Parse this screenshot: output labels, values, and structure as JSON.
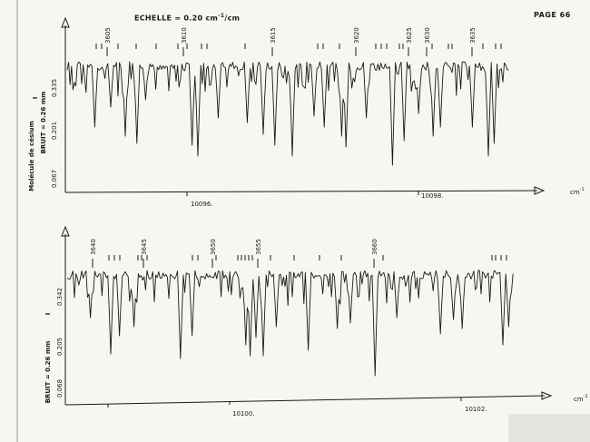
{
  "header": {
    "scale_label": "ECHELLE = 0.20 cm",
    "scale_exponent": "-1",
    "scale_suffix": "/cm",
    "page_number": "PAGE 66"
  },
  "chart_data": [
    {
      "type": "line",
      "panel": "top",
      "xunit": "cm",
      "xunit_exponent": "-1",
      "x_tick_labels": [
        {
          "value": 10096,
          "label": "10096."
        },
        {
          "value": 10098,
          "label": "10098."
        }
      ],
      "y_tick_labels": [
        "0.335",
        "0.201",
        "0.067"
      ],
      "y_marker": "I",
      "ylabel": "BRUIT = 0.26 mm",
      "side_label": "Molécule de césium",
      "line_numbers": [
        "3605",
        "3610",
        "3615",
        "3620",
        "3625",
        "3630",
        "3635"
      ]
    },
    {
      "type": "line",
      "panel": "bottom",
      "xunit": "cm",
      "xunit_exponent": "-1",
      "x_tick_labels": [
        {
          "value": 10100,
          "label": "10100."
        },
        {
          "value": 10102,
          "label": "10102."
        }
      ],
      "y_tick_labels": [
        "0.342",
        "0.205",
        "0.068"
      ],
      "y_marker": "I",
      "ylabel": "BRUIT = 0.26 mm",
      "line_numbers": [
        "3640",
        "3645",
        "3650",
        "3655",
        "3660"
      ]
    }
  ],
  "colors": {
    "ink": "#1a1a1a",
    "paper": "#f7f6f2"
  }
}
